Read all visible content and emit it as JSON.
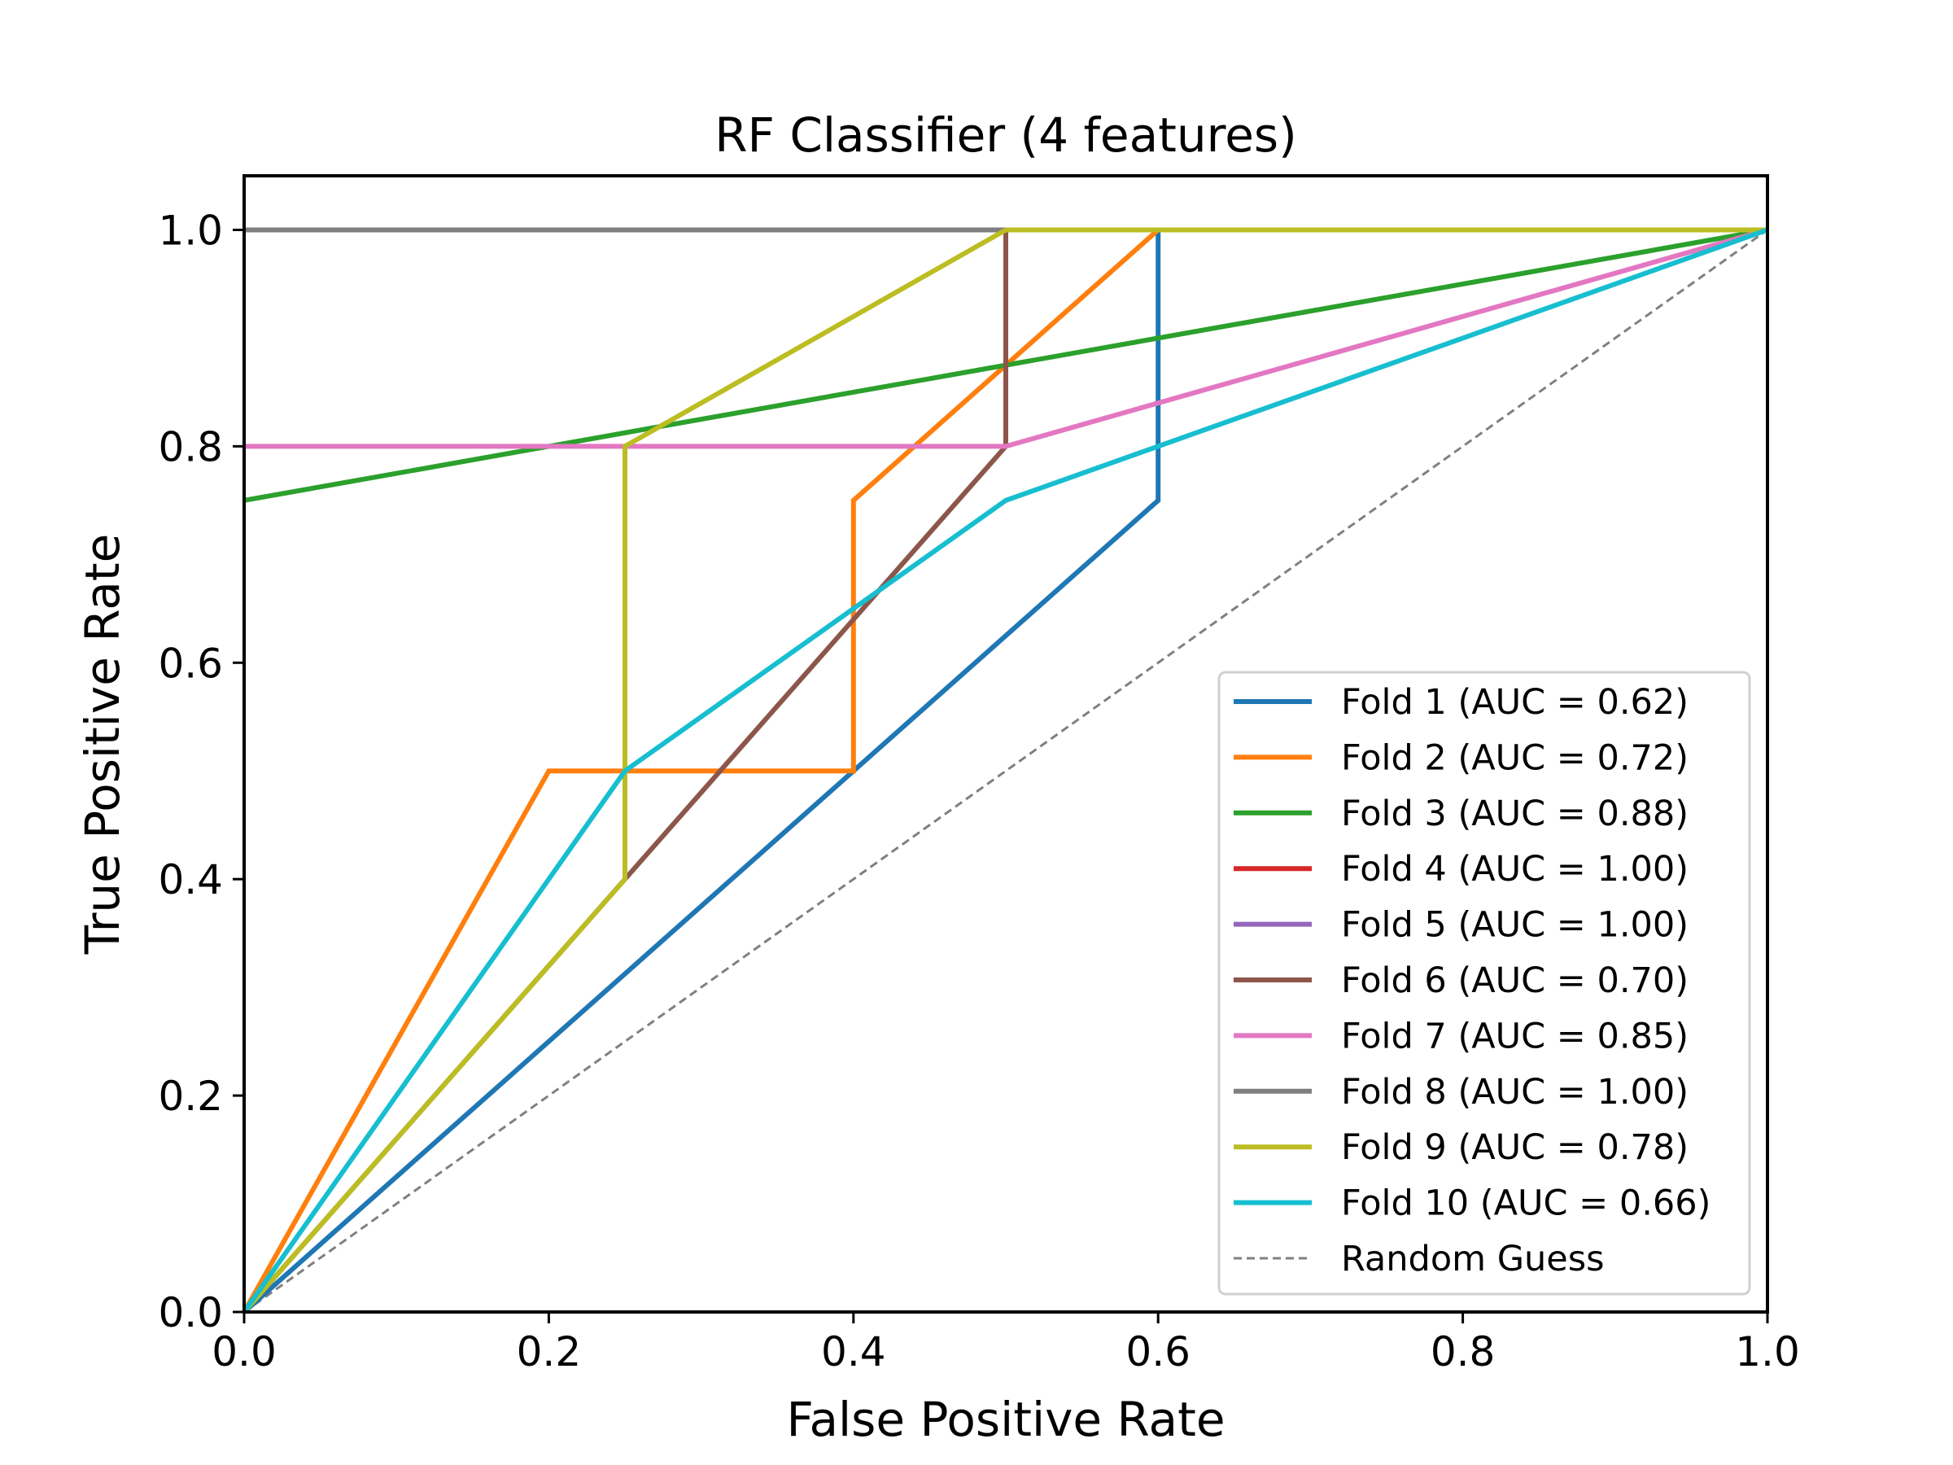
{
  "chart_data": {
    "type": "line",
    "title": "RF Classifier (4 features)",
    "xlabel": "False Positive Rate",
    "ylabel": "True Positive Rate",
    "xlim": [
      0.0,
      1.0
    ],
    "ylim": [
      0.0,
      1.05
    ],
    "xticks": [
      "0.0",
      "0.2",
      "0.4",
      "0.6",
      "0.8",
      "1.0"
    ],
    "yticks": [
      "0.0",
      "0.2",
      "0.4",
      "0.6",
      "0.8",
      "1.0"
    ],
    "grid": false,
    "legend_position": "lower-right",
    "series": [
      {
        "name": "Fold 1 (AUC = 0.62)",
        "color": "#1f77b4",
        "x": [
          0,
          0.4,
          0.6,
          0.6,
          1.0
        ],
        "y": [
          0,
          0.5,
          0.75,
          1.0,
          1.0
        ]
      },
      {
        "name": "Fold 2 (AUC = 0.72)",
        "color": "#ff7f0e",
        "x": [
          0,
          0.2,
          0.4,
          0.4,
          0.6,
          1.0
        ],
        "y": [
          0,
          0.5,
          0.5,
          0.75,
          1.0,
          1.0
        ]
      },
      {
        "name": "Fold 3 (AUC = 0.88)",
        "color": "#2ca02c",
        "x": [
          0,
          1.0
        ],
        "y": [
          0.75,
          1.0
        ]
      },
      {
        "name": "Fold 4 (AUC = 1.00)",
        "color": "#d62728",
        "x": [
          0,
          1.0
        ],
        "y": [
          1.0,
          1.0
        ]
      },
      {
        "name": "Fold 5 (AUC = 1.00)",
        "color": "#9467bd",
        "x": [
          0,
          1.0
        ],
        "y": [
          1.0,
          1.0
        ]
      },
      {
        "name": "Fold 6 (AUC = 0.70)",
        "color": "#8c564b",
        "x": [
          0,
          0.25,
          0.5,
          0.5,
          1.0
        ],
        "y": [
          0,
          0.4,
          0.8,
          1.0,
          1.0
        ]
      },
      {
        "name": "Fold 7 (AUC = 0.85)",
        "color": "#e377c2",
        "x": [
          0,
          0.5,
          1.0
        ],
        "y": [
          0.8,
          0.8,
          1.0
        ]
      },
      {
        "name": "Fold 8 (AUC = 1.00)",
        "color": "#7f7f7f",
        "x": [
          0,
          1.0
        ],
        "y": [
          1.0,
          1.0
        ]
      },
      {
        "name": "Fold 9 (AUC = 0.78)",
        "color": "#bcbd22",
        "x": [
          0,
          0.25,
          0.25,
          0.5,
          1.0
        ],
        "y": [
          0,
          0.4,
          0.8,
          1.0,
          1.0
        ]
      },
      {
        "name": "Fold 10 (AUC = 0.66)",
        "color": "#17becf",
        "x": [
          0,
          0.25,
          0.5,
          1.0
        ],
        "y": [
          0,
          0.5,
          0.75,
          1.0
        ]
      }
    ],
    "reference_line": {
      "name": "Random Guess",
      "color": "#808080",
      "style": "dashed",
      "x": [
        0,
        1
      ],
      "y": [
        0,
        1
      ]
    }
  }
}
